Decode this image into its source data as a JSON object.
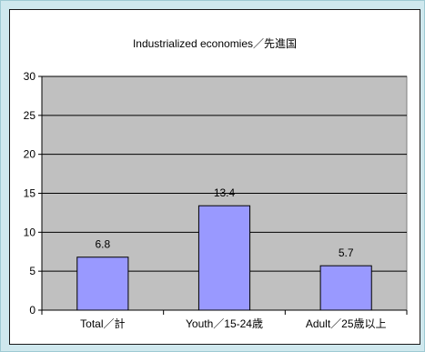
{
  "chart_data": {
    "type": "bar",
    "title": "Industrialized economies／先進国",
    "categories": [
      "Total／計",
      "Youth／15-24歳",
      "Adult／25歳以上"
    ],
    "values": [
      6.8,
      13.4,
      5.7
    ],
    "data_labels": [
      "6.8",
      "13.4",
      "5.7"
    ],
    "ylim": [
      0,
      30
    ],
    "yticks": [
      "0",
      "5",
      "10",
      "15",
      "20",
      "25",
      "30"
    ],
    "xlabel": "",
    "ylabel": "",
    "grid": true,
    "legend": "none",
    "colors": {
      "bar_fill": "#9999ff",
      "bar_stroke": "#000000",
      "plot_background": "#c0c0c0",
      "gridline": "#000000"
    }
  }
}
